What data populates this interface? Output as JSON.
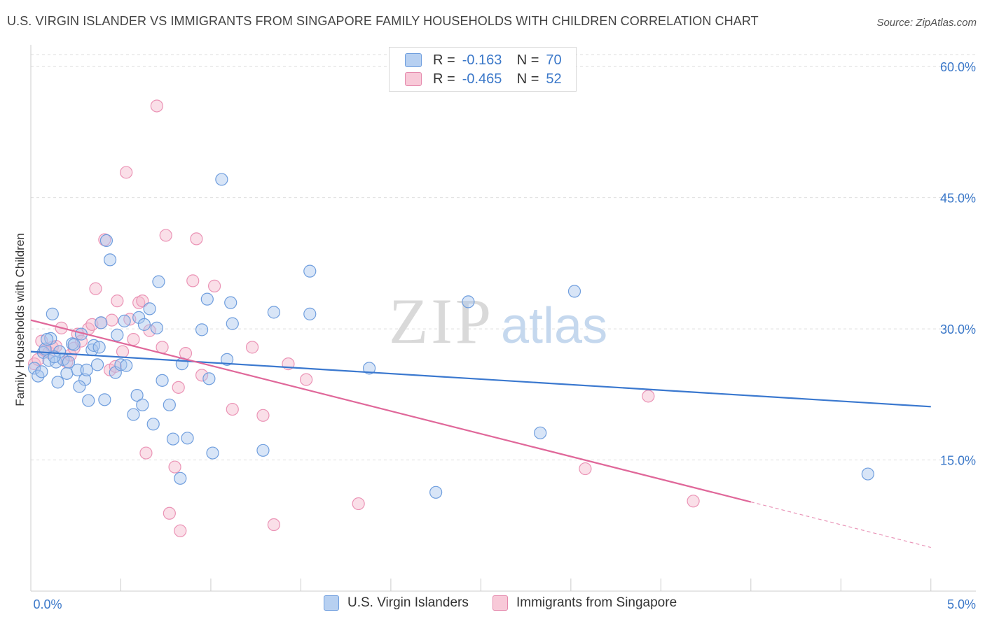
{
  "header": {
    "title": "U.S. VIRGIN ISLANDER VS IMMIGRANTS FROM SINGAPORE FAMILY HOUSEHOLDS WITH CHILDREN CORRELATION CHART",
    "source": "Source: ZipAtlas.com"
  },
  "watermark": {
    "zip": "ZIP",
    "atlas": "atlas"
  },
  "legend": {
    "blue": {
      "r_label": "R =",
      "r_value": "-0.163",
      "n_label": "N =",
      "n_value": "70"
    },
    "pink": {
      "r_label": "R =",
      "r_value": "-0.465",
      "n_label": "N =",
      "n_value": "52"
    }
  },
  "bottom_legend": {
    "blue_label": "U.S. Virgin Islanders",
    "pink_label": "Immigrants from Singapore"
  },
  "colors": {
    "blue": "#3a78cf",
    "blue_fill": "#a9c6ee",
    "pink": "#e0689a",
    "pink_fill": "#f5b9cd",
    "grid": "#dddddd",
    "tick_text": "#3b78c9"
  },
  "chart_data": {
    "type": "scatter",
    "title": "U.S. VIRGIN ISLANDER VS IMMIGRANTS FROM SINGAPORE FAMILY HOUSEHOLDS WITH CHILDREN CORRELATION CHART",
    "xlabel": "",
    "ylabel": "Family Households with Children",
    "xlim": [
      0,
      5.25
    ],
    "ylim": [
      0,
      62.5
    ],
    "x_tick_labels": [
      "0.0%",
      "5.0%"
    ],
    "y_ticks": [
      15,
      30,
      45,
      60
    ],
    "y_tick_labels": [
      "15.0%",
      "30.0%",
      "45.0%",
      "60.0%"
    ],
    "series": [
      {
        "name": "U.S. Virgin Islanders",
        "color": "blue",
        "points": [
          [
            0.02,
            25.5
          ],
          [
            0.04,
            24.6
          ],
          [
            0.07,
            27.3
          ],
          [
            0.08,
            27.7
          ],
          [
            0.1,
            26.4
          ],
          [
            0.11,
            28.9
          ],
          [
            0.12,
            31.7
          ],
          [
            0.14,
            26.2
          ],
          [
            0.15,
            23.9
          ],
          [
            0.18,
            26.5
          ],
          [
            0.2,
            24.9
          ],
          [
            0.21,
            26.2
          ],
          [
            0.23,
            28.3
          ],
          [
            0.24,
            28.2
          ],
          [
            0.26,
            25.3
          ],
          [
            0.28,
            29.4
          ],
          [
            0.3,
            24.2
          ],
          [
            0.31,
            25.3
          ],
          [
            0.32,
            21.8
          ],
          [
            0.34,
            27.6
          ],
          [
            0.35,
            28.1
          ],
          [
            0.37,
            25.9
          ],
          [
            0.38,
            27.9
          ],
          [
            0.39,
            30.7
          ],
          [
            0.41,
            21.9
          ],
          [
            0.42,
            40.1
          ],
          [
            0.44,
            37.9
          ],
          [
            0.47,
            25.0
          ],
          [
            0.48,
            29.3
          ],
          [
            0.5,
            25.9
          ],
          [
            0.52,
            30.9
          ],
          [
            0.53,
            25.8
          ],
          [
            0.57,
            20.2
          ],
          [
            0.59,
            22.4
          ],
          [
            0.6,
            31.3
          ],
          [
            0.62,
            21.3
          ],
          [
            0.63,
            30.5
          ],
          [
            0.66,
            32.3
          ],
          [
            0.68,
            19.1
          ],
          [
            0.7,
            30.1
          ],
          [
            0.71,
            35.4
          ],
          [
            0.73,
            24.1
          ],
          [
            0.77,
            21.3
          ],
          [
            0.79,
            17.4
          ],
          [
            0.83,
            12.9
          ],
          [
            0.84,
            26.0
          ],
          [
            0.87,
            17.5
          ],
          [
            0.95,
            29.9
          ],
          [
            0.98,
            33.4
          ],
          [
            0.99,
            24.3
          ],
          [
            1.01,
            15.8
          ],
          [
            1.06,
            47.1
          ],
          [
            1.09,
            26.5
          ],
          [
            1.11,
            33.0
          ],
          [
            1.12,
            30.6
          ],
          [
            1.29,
            16.1
          ],
          [
            1.35,
            31.9
          ],
          [
            1.55,
            36.6
          ],
          [
            1.55,
            31.7
          ],
          [
            1.88,
            25.5
          ],
          [
            2.25,
            11.3
          ],
          [
            2.43,
            33.1
          ],
          [
            2.83,
            18.1
          ],
          [
            3.02,
            34.3
          ],
          [
            4.65,
            13.4
          ],
          [
            0.16,
            27.4
          ],
          [
            0.06,
            25.1
          ],
          [
            0.27,
            23.4
          ],
          [
            0.09,
            28.8
          ],
          [
            0.13,
            26.8
          ]
        ],
        "trend": {
          "x": [
            0,
            5.0
          ],
          "y": [
            27.4,
            21.1
          ]
        }
      },
      {
        "name": "Immigrants from Singapore",
        "color": "pink",
        "points": [
          [
            0.02,
            26.0
          ],
          [
            0.04,
            26.5
          ],
          [
            0.06,
            28.6
          ],
          [
            0.08,
            27.5
          ],
          [
            0.1,
            27.3
          ],
          [
            0.12,
            27.9
          ],
          [
            0.14,
            28.0
          ],
          [
            0.17,
            30.1
          ],
          [
            0.2,
            26.2
          ],
          [
            0.22,
            27.0
          ],
          [
            0.24,
            27.8
          ],
          [
            0.26,
            29.4
          ],
          [
            0.28,
            28.6
          ],
          [
            0.32,
            30.0
          ],
          [
            0.34,
            30.5
          ],
          [
            0.36,
            34.6
          ],
          [
            0.39,
            30.7
          ],
          [
            0.41,
            40.2
          ],
          [
            0.44,
            25.3
          ],
          [
            0.45,
            31.0
          ],
          [
            0.47,
            25.7
          ],
          [
            0.48,
            33.2
          ],
          [
            0.51,
            27.4
          ],
          [
            0.53,
            47.9
          ],
          [
            0.55,
            31.1
          ],
          [
            0.57,
            28.8
          ],
          [
            0.6,
            33.0
          ],
          [
            0.62,
            33.2
          ],
          [
            0.64,
            15.8
          ],
          [
            0.66,
            29.8
          ],
          [
            0.7,
            55.5
          ],
          [
            0.73,
            27.9
          ],
          [
            0.75,
            40.7
          ],
          [
            0.77,
            8.9
          ],
          [
            0.8,
            14.2
          ],
          [
            0.82,
            23.3
          ],
          [
            0.83,
            6.9
          ],
          [
            0.86,
            27.2
          ],
          [
            0.9,
            35.5
          ],
          [
            0.92,
            40.3
          ],
          [
            0.95,
            24.7
          ],
          [
            1.02,
            34.9
          ],
          [
            1.12,
            20.8
          ],
          [
            1.23,
            27.9
          ],
          [
            1.29,
            20.1
          ],
          [
            1.35,
            7.6
          ],
          [
            1.43,
            26.0
          ],
          [
            1.53,
            24.2
          ],
          [
            1.82,
            10.0
          ],
          [
            3.08,
            14.0
          ],
          [
            3.43,
            22.3
          ],
          [
            3.68,
            10.3
          ]
        ],
        "trend": {
          "x": [
            0,
            4.0
          ],
          "y": [
            31.0,
            10.2
          ]
        },
        "trend_dashed": {
          "x": [
            4.0,
            5.0
          ],
          "y": [
            10.2,
            5.0
          ]
        }
      }
    ]
  }
}
